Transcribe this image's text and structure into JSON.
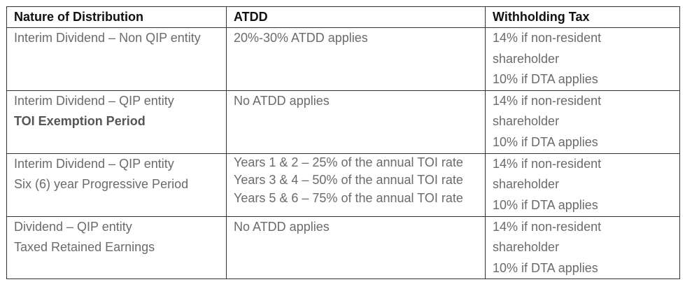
{
  "table": {
    "headers": [
      "Nature of Distribution",
      "ATDD",
      "Withholding Tax"
    ],
    "rows": [
      {
        "nature": [
          "Interim Dividend – Non QIP entity"
        ],
        "atdd": [
          "20%-30% ATDD applies"
        ],
        "withholding": [
          "14% if non-resident",
          "shareholder",
          "10% if DTA applies"
        ]
      },
      {
        "nature": [
          "Interim Dividend – QIP entity",
          "TOI Exemption Period"
        ],
        "atdd": [
          "No ATDD applies"
        ],
        "withholding": [
          "14% if non-resident",
          "shareholder",
          "10% if DTA applies"
        ]
      },
      {
        "nature": [
          "Interim Dividend – QIP entity",
          "Six (6) year Progressive Period"
        ],
        "atdd": [
          "Years 1 & 2 – 25% of the annual TOI rate",
          "Years 3 & 4 – 50% of the annual TOI rate",
          "Years 5 & 6 – 75% of the annual TOI rate"
        ],
        "withholding": [
          "14% if non-resident",
          "shareholder",
          "10% if DTA applies"
        ]
      },
      {
        "nature": [
          "Dividend – QIP entity",
          "Taxed Retained Earnings"
        ],
        "atdd": [
          "No ATDD applies"
        ],
        "withholding": [
          "14% if non-resident",
          "shareholder",
          "10% if DTA applies"
        ]
      }
    ]
  }
}
